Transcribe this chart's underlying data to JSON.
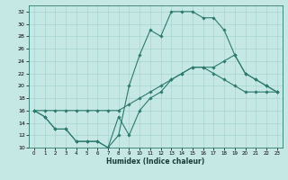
{
  "xlabel": "Humidex (Indice chaleur)",
  "bg_color": "#c5e8e5",
  "line_color": "#2d7a6e",
  "grid_color": "#a8d4d0",
  "xlim": [
    -0.5,
    23.5
  ],
  "ylim": [
    10,
    33
  ],
  "xticks": [
    0,
    1,
    2,
    3,
    4,
    5,
    6,
    7,
    8,
    9,
    10,
    11,
    12,
    13,
    14,
    15,
    16,
    17,
    18,
    19,
    20,
    21,
    22,
    23
  ],
  "yticks": [
    10,
    12,
    14,
    16,
    18,
    20,
    22,
    24,
    26,
    28,
    30,
    32
  ],
  "curve1_x": [
    0,
    1,
    2,
    3,
    4,
    5,
    6,
    7,
    8,
    9,
    10,
    11,
    12,
    13,
    14,
    15,
    16,
    17,
    18,
    19,
    20,
    21,
    22,
    23
  ],
  "curve1_y": [
    16,
    15,
    13,
    13,
    11,
    11,
    11,
    10,
    12,
    20,
    25,
    29,
    28,
    32,
    32,
    32,
    31,
    31,
    29,
    25,
    22,
    21,
    20,
    19
  ],
  "curve2_x": [
    0,
    1,
    2,
    3,
    4,
    5,
    6,
    7,
    8,
    9,
    10,
    11,
    12,
    13,
    14,
    15,
    16,
    17,
    18,
    19,
    20,
    21,
    22,
    23
  ],
  "curve2_y": [
    16,
    16,
    16,
    16,
    16,
    16,
    16,
    16,
    16,
    17,
    18,
    19,
    20,
    21,
    22,
    23,
    23,
    23,
    24,
    25,
    22,
    21,
    20,
    19
  ],
  "curve3_x": [
    0,
    1,
    2,
    3,
    4,
    5,
    6,
    7,
    8,
    9,
    10,
    11,
    12,
    13,
    14,
    15,
    16,
    17,
    18,
    19,
    20,
    21,
    22,
    23
  ],
  "curve3_y": [
    16,
    15,
    13,
    13,
    11,
    11,
    11,
    10,
    15,
    12,
    16,
    18,
    19,
    21,
    22,
    23,
    23,
    22,
    21,
    20,
    19,
    19,
    19,
    19
  ]
}
